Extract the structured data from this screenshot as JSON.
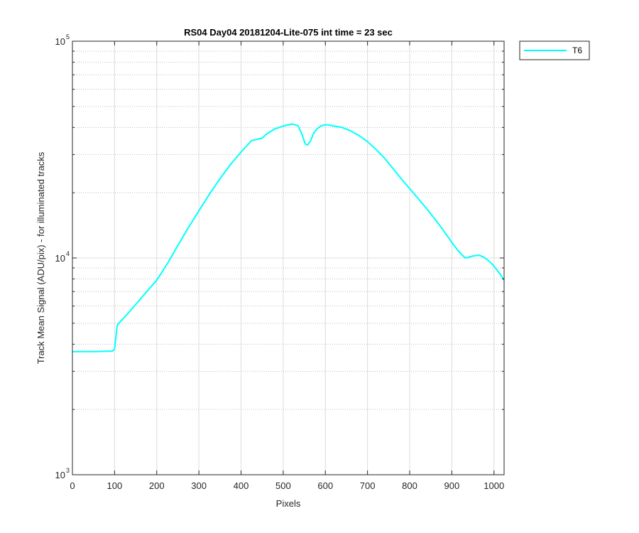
{
  "chart_data": {
    "type": "line",
    "title": "RS04 Day04 20181204-Lite-075 int time = 23 sec",
    "xlabel": "Pixels",
    "ylabel": "Track Mean Signal (ADU/pix) - for illuminated tracks",
    "xlim": [
      0,
      1024
    ],
    "ylim": [
      1000,
      100000
    ],
    "yscale": "log",
    "grid": "major and minor (dotted)",
    "legend_position": "outside top-right",
    "xticks": [
      "0",
      "100",
      "200",
      "300",
      "400",
      "500",
      "600",
      "700",
      "800",
      "900",
      "1000"
    ],
    "yticks": [
      {
        "value": 1000,
        "base": "10",
        "exp": "3"
      },
      {
        "value": 10000,
        "base": "10",
        "exp": "4"
      },
      {
        "value": 100000,
        "base": "10",
        "exp": "5"
      }
    ],
    "series": [
      {
        "name": "T6",
        "color": "#00ffff",
        "x": [
          0,
          50,
          95,
          100,
          103,
          106,
          110,
          130,
          150,
          175,
          200,
          225,
          250,
          275,
          300,
          325,
          350,
          375,
          400,
          425,
          450,
          460,
          470,
          480,
          500,
          520,
          535,
          545,
          552,
          558,
          565,
          572,
          580,
          590,
          600,
          610,
          620,
          640,
          660,
          680,
          700,
          720,
          740,
          760,
          780,
          800,
          820,
          840,
          860,
          880,
          900,
          915,
          925,
          932,
          938,
          945,
          955,
          965,
          975,
          985,
          995,
          1005,
          1015,
          1024
        ],
        "y": [
          3700,
          3700,
          3720,
          3800,
          4300,
          4850,
          5000,
          5500,
          6100,
          6950,
          7900,
          9400,
          11400,
          13800,
          16500,
          19700,
          23200,
          27000,
          30800,
          34800,
          35700,
          37200,
          38300,
          39400,
          40600,
          41500,
          40800,
          37000,
          33600,
          33200,
          34800,
          37500,
          39400,
          40700,
          41200,
          41000,
          40600,
          40000,
          38600,
          36700,
          34400,
          31700,
          28900,
          25900,
          23200,
          20900,
          18800,
          16900,
          15100,
          13400,
          11800,
          10800,
          10300,
          10000,
          10050,
          10150,
          10250,
          10300,
          10100,
          9800,
          9400,
          8900,
          8400,
          7900
        ]
      }
    ]
  }
}
